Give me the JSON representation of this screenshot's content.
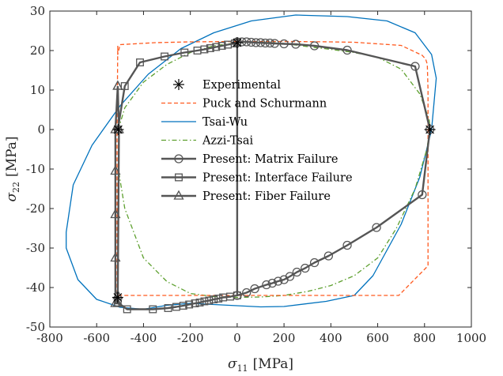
{
  "chart_data": {
    "type": "line",
    "xlabel_symbol": "σ",
    "xlabel_sub": "11",
    "xlabel_unit": "[MPa]",
    "ylabel_symbol": "σ",
    "ylabel_sub": "22",
    "ylabel_unit": "[MPa]",
    "xlim": [
      -800,
      1000
    ],
    "ylim": [
      -50,
      30
    ],
    "x_ticks": [
      "-800",
      "-600",
      "-400",
      "-200",
      "0",
      "200",
      "400",
      "600",
      "800",
      "1000"
    ],
    "y_ticks": [
      "-50",
      "-40",
      "-30",
      "-20",
      "-10",
      "0",
      "10",
      "20",
      "30"
    ],
    "grid": false,
    "legend_position": "upper-center",
    "series": [
      {
        "name": "Experimental",
        "style": "marker-asterisk",
        "color": "#000000",
        "x": [
          -508,
          823,
          -510,
          0
        ],
        "y": [
          0,
          0,
          -42.5,
          22
        ]
      },
      {
        "name": "Puck and Schurmann",
        "style": "dashed",
        "color": "#ff5a1f",
        "x": [
          -510,
          -510,
          -500,
          -350,
          -200,
          0,
          200,
          400,
          500,
          700,
          790,
          805,
          812,
          815,
          815,
          815,
          690,
          500,
          0,
          -500,
          -513,
          -513,
          -510
        ],
        "y": [
          21.2,
          19,
          21.5,
          22,
          22.2,
          22.3,
          22.3,
          22.2,
          22.1,
          21.3,
          18.8,
          17.8,
          16.5,
          10,
          0,
          -34.5,
          -42,
          -42,
          -42,
          -42,
          -42,
          0,
          21.2
        ]
      },
      {
        "name": "Tsai-Wu",
        "style": "solid",
        "color": "#0072bd",
        "x": [
          470,
          640,
          760,
          830,
          850,
          830,
          780,
          700,
          580,
          500,
          380,
          200,
          100,
          0,
          -100,
          -200,
          -300,
          -400,
          -500,
          -600,
          -680,
          -730,
          -730,
          -700,
          -620,
          -500,
          -380,
          -240,
          -100,
          60,
          250,
          470
        ],
        "y": [
          28.6,
          27.5,
          24.5,
          19,
          13,
          0,
          -12,
          -24,
          -37,
          -42,
          -43.5,
          -44.8,
          -44.9,
          -44.6,
          -44.3,
          -44,
          -44.5,
          -45.5,
          -45,
          -43,
          -38,
          -30,
          -26,
          -14,
          -4,
          6,
          14,
          20.5,
          24.5,
          27.5,
          29,
          28.6
        ]
      },
      {
        "name": "Azzi-Tsai",
        "style": "dashdot",
        "color": "#5ea02f",
        "x": [
          -508,
          -480,
          -400,
          -300,
          -200,
          -100,
          0,
          100,
          200,
          300,
          400,
          500,
          600,
          700,
          780,
          820,
          823,
          810,
          760,
          680,
          600,
          500,
          400,
          300,
          200,
          100,
          0,
          -100,
          -200,
          -300,
          -400,
          -480,
          -508
        ],
        "y": [
          0,
          5.5,
          12,
          16.5,
          19.5,
          21.2,
          22,
          22.2,
          21.8,
          21,
          20.3,
          19.5,
          18.3,
          15.3,
          9,
          2.5,
          0,
          -5,
          -15,
          -25,
          -32.5,
          -37,
          -39.5,
          -41,
          -42,
          -42.4,
          -42.5,
          -42.3,
          -41.5,
          -38.5,
          -32.5,
          -20,
          -10
        ]
      },
      {
        "name": "Present: Matrix Failure",
        "style": "solid-circle",
        "color": "#555555",
        "x": [
          0,
          20,
          40,
          60,
          80,
          100,
          120,
          140,
          160,
          200,
          250,
          330,
          470,
          760,
          823,
          790,
          595,
          470,
          390,
          330,
          290,
          255,
          225,
          200,
          175,
          150,
          125,
          75,
          40,
          0
        ],
        "y": [
          22.2,
          22.2,
          22.2,
          22.1,
          22,
          22,
          21.9,
          21.9,
          21.8,
          21.7,
          21.6,
          21.2,
          20.1,
          16,
          0,
          -16.5,
          -24.8,
          -29.3,
          -32,
          -33.7,
          -35.1,
          -36.1,
          -37.2,
          -38,
          -38.4,
          -38.9,
          -39.3,
          -40.3,
          -41.3,
          -42
        ]
      },
      {
        "name": "Present: Interface Failure",
        "style": "solid-square",
        "color": "#555555",
        "x": [
          -510,
          -480,
          -415,
          -310,
          -225,
          -170,
          -140,
          -115,
          -90,
          -65,
          -40,
          -10,
          0,
          0,
          -30,
          -60,
          -80,
          -100,
          -120,
          -140,
          -160,
          -180,
          -205,
          -230,
          -260,
          -295,
          -360,
          -470,
          -510
        ],
        "y": [
          0,
          11,
          17,
          18.5,
          19.5,
          20,
          20.3,
          20.6,
          20.9,
          21.2,
          21.5,
          21.8,
          22,
          -42,
          -42.3,
          -42.5,
          -42.8,
          -43,
          -43.3,
          -43.5,
          -43.8,
          -44,
          -44.3,
          -44.6,
          -44.9,
          -45.2,
          -45.5,
          -45.5,
          -43.8
        ]
      },
      {
        "name": "Present: Fiber Failure",
        "style": "solid-triangle",
        "color": "#555555",
        "x": [
          -510,
          -520,
          -520,
          -520,
          -520,
          -520,
          -510,
          -510,
          -505,
          -510
        ],
        "y": [
          11,
          0,
          -10.5,
          -21.5,
          -32.5,
          -44,
          -44,
          -42,
          0,
          11
        ]
      }
    ]
  }
}
